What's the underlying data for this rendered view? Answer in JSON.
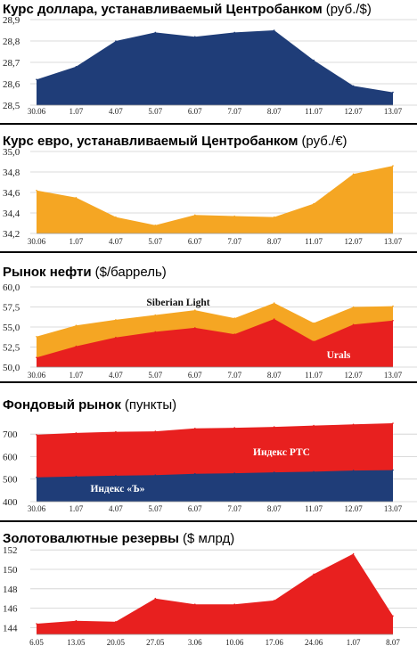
{
  "chart_data": [
    {
      "type": "area",
      "title": "Курс доллара, устанавливаемый Центробанком",
      "subtitle": "(руб./$)",
      "categories": [
        "30.06",
        "1.07",
        "4.07",
        "5.07",
        "6.07",
        "7.07",
        "8.07",
        "11.07",
        "12.07",
        "13.07"
      ],
      "series": [
        {
          "values": [
            28.62,
            28.68,
            28.8,
            28.84,
            28.82,
            28.84,
            28.85,
            28.71,
            28.59,
            28.56
          ],
          "color": "#1f3d78"
        }
      ],
      "yticks": [
        28.5,
        28.6,
        28.7,
        28.8,
        28.9
      ],
      "ytick_labels": [
        "28,5",
        "28,6",
        "28,7",
        "28,8",
        "28,9"
      ],
      "ylim": [
        28.5,
        28.9
      ],
      "grid": true
    },
    {
      "type": "area",
      "title": "Курс евро, устанавливаемый Центробанком",
      "subtitle": "(руб./€)",
      "categories": [
        "30.06",
        "1.07",
        "4.07",
        "5.07",
        "6.07",
        "7.07",
        "8.07",
        "11.07",
        "12.07",
        "13.07"
      ],
      "series": [
        {
          "values": [
            34.62,
            34.55,
            34.36,
            34.28,
            34.38,
            34.37,
            34.36,
            34.49,
            34.78,
            34.86
          ],
          "color": "#f5a623"
        }
      ],
      "yticks": [
        34.2,
        34.4,
        34.6,
        34.8,
        35.0
      ],
      "ytick_labels": [
        "34,2",
        "34,4",
        "34,6",
        "34,8",
        "35,0"
      ],
      "ylim": [
        34.2,
        35.0
      ],
      "grid": true
    },
    {
      "type": "area",
      "title": "Рынок нефти",
      "subtitle": "($/баррель)",
      "categories": [
        "30.06",
        "1.07",
        "4.07",
        "5.07",
        "6.07",
        "7.07",
        "8.07",
        "11.07",
        "12.07",
        "13.07"
      ],
      "series": [
        {
          "name": "Siberian Light",
          "values": [
            53.8,
            55.2,
            55.9,
            56.5,
            57.1,
            56.1,
            58.0,
            55.5,
            57.5,
            57.6
          ],
          "color": "#f5a623"
        },
        {
          "name": "Urals",
          "values": [
            51.2,
            52.6,
            53.7,
            54.4,
            54.9,
            54.1,
            56.0,
            53.2,
            55.3,
            55.8
          ],
          "color": "#e8201f"
        }
      ],
      "yticks": [
        50.0,
        52.5,
        55.0,
        57.5,
        60.0
      ],
      "ytick_labels": [
        "50,0",
        "52,5",
        "55,0",
        "57,5",
        "60,0"
      ],
      "ylim": [
        50.0,
        60.0
      ],
      "grid": true
    },
    {
      "type": "area",
      "title": "Фондовый рынок",
      "subtitle": "(пункты)",
      "categories": [
        "30.06",
        "1.07",
        "4.07",
        "5.07",
        "6.07",
        "7.07",
        "8.07",
        "11.07",
        "12.07",
        "13.07"
      ],
      "series": [
        {
          "name": "Индекс РТС",
          "values": [
            697,
            705,
            710,
            712,
            725,
            728,
            732,
            738,
            743,
            748
          ],
          "color": "#e8201f"
        },
        {
          "name": "Индекс «Ъ»",
          "values": [
            508,
            512,
            515,
            518,
            524,
            526,
            530,
            533,
            538,
            540
          ],
          "color": "#1f3d78"
        }
      ],
      "yticks": [
        400,
        500,
        600,
        700
      ],
      "ytick_labels": [
        "400",
        "500",
        "600",
        "700"
      ],
      "ylim": [
        400,
        760
      ],
      "grid": true
    },
    {
      "type": "area",
      "title": "Золотовалютные резервы",
      "subtitle": "($ млрд)",
      "categories": [
        "6.05",
        "13.05",
        "20.05",
        "27.05",
        "3.06",
        "10.06",
        "17.06",
        "24.06",
        "1.07",
        "8.07"
      ],
      "series": [
        {
          "values": [
            144.4,
            144.7,
            144.6,
            147.0,
            146.4,
            146.4,
            146.8,
            149.5,
            151.6,
            145.2
          ],
          "color": "#e8201f"
        }
      ],
      "yticks": [
        144,
        146,
        148,
        150,
        152
      ],
      "ytick_labels": [
        "144",
        "146",
        "148",
        "150",
        "152"
      ],
      "ylim": [
        143.3,
        152.2
      ],
      "grid": true
    }
  ]
}
